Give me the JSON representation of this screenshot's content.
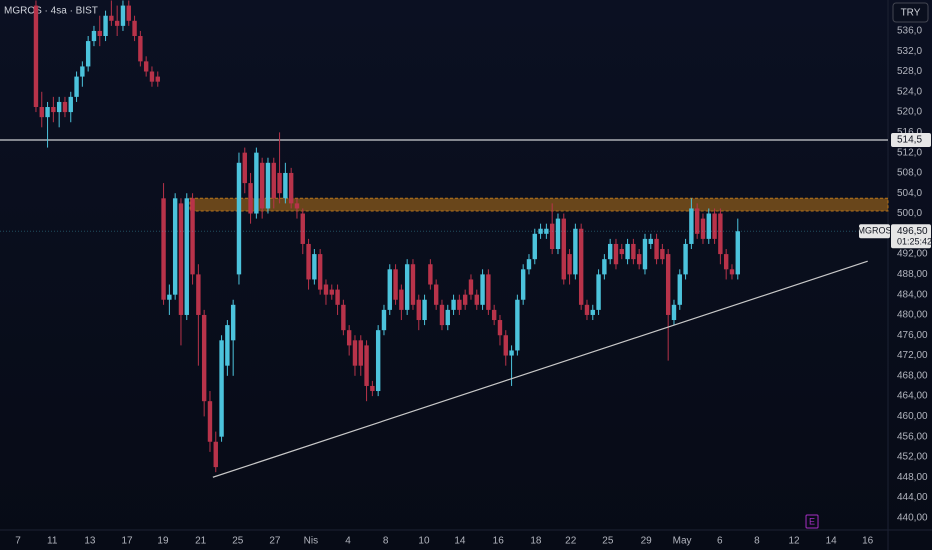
{
  "chart_data": {
    "type": "candlestick",
    "title": "MGROS · 4sa · BIST",
    "currency": "TRY",
    "x": [
      0,
      1,
      2,
      3,
      4,
      5,
      6,
      7,
      8,
      9,
      10,
      11,
      12,
      13,
      14,
      15,
      16,
      17,
      18,
      19,
      20,
      21,
      22,
      23,
      24,
      25,
      26,
      27,
      28,
      29,
      30,
      31,
      32,
      33,
      34,
      35,
      36,
      37,
      38,
      39,
      40,
      41,
      42,
      43,
      44,
      45,
      46,
      47,
      48,
      49,
      50,
      51,
      52,
      53,
      54,
      55,
      56,
      57,
      58,
      59,
      60,
      61,
      62,
      63,
      64,
      65,
      66,
      67,
      68,
      69,
      70,
      71,
      72,
      73,
      74,
      75,
      76,
      77,
      78,
      79,
      80,
      81,
      82,
      83,
      84,
      85,
      86,
      87,
      88,
      89,
      90,
      91,
      92,
      93,
      94,
      95,
      96,
      97,
      98,
      99,
      100,
      101,
      102,
      103,
      104,
      105,
      106,
      107,
      108,
      109,
      110,
      111,
      112,
      113,
      114,
      115,
      116,
      117,
      118,
      119,
      120,
      121
    ],
    "open": [
      541,
      521,
      519,
      521,
      520,
      522,
      520,
      523,
      527,
      529,
      534,
      536,
      535,
      539,
      538,
      537,
      541,
      538,
      535,
      530,
      528,
      527,
      503,
      483,
      484,
      502,
      480,
      503,
      488,
      480,
      463,
      455,
      456,
      470,
      475,
      488,
      512,
      506,
      500,
      510,
      501,
      510,
      508,
      503,
      508,
      502,
      500,
      494,
      487,
      492,
      486,
      485,
      485,
      482,
      477,
      475,
      475,
      474,
      466,
      465,
      477,
      481,
      489,
      485,
      481,
      490,
      483,
      479,
      490,
      486,
      482,
      478,
      481,
      483,
      484,
      487,
      484,
      482,
      488,
      481,
      479,
      476,
      472,
      473,
      483,
      489,
      491,
      496,
      496,
      498,
      493,
      499,
      492,
      488,
      497,
      482,
      480,
      481,
      488,
      491,
      494,
      493,
      491,
      494,
      492,
      489,
      494,
      495,
      493,
      492,
      479,
      482,
      488,
      494,
      501,
      499,
      495,
      500,
      500,
      492,
      489,
      488
    ],
    "high": [
      542,
      524,
      522,
      523,
      523,
      523,
      524,
      528,
      530,
      535,
      537,
      539,
      540,
      542,
      541,
      542,
      542,
      539,
      536,
      531,
      529,
      528,
      506,
      486,
      504,
      503,
      504,
      504,
      490,
      481,
      465,
      457,
      476,
      479,
      483,
      512,
      513,
      508,
      513,
      511,
      511,
      511,
      516,
      510,
      509,
      503,
      501,
      495,
      493,
      493,
      487,
      486,
      486,
      483,
      478,
      476,
      476,
      475,
      467,
      478,
      482,
      490,
      490,
      486,
      491,
      491,
      484,
      484,
      491,
      487,
      483,
      482,
      484,
      484,
      485,
      488,
      485,
      489,
      489,
      482,
      480,
      477,
      474,
      484,
      490,
      492,
      497,
      498,
      498,
      502,
      500,
      500,
      493,
      498,
      498,
      483,
      482,
      489,
      492,
      495,
      495,
      494,
      495,
      495,
      493,
      496,
      496,
      496,
      494,
      493,
      483,
      489,
      495,
      503,
      502,
      500,
      501,
      501,
      501,
      493,
      490,
      499
    ],
    "low": [
      520,
      517,
      513,
      518,
      517,
      519,
      518,
      522,
      525,
      528,
      533,
      533,
      534,
      537,
      535,
      536,
      537,
      534,
      529,
      527,
      525,
      525,
      482,
      480,
      483,
      474,
      479,
      486,
      470,
      460,
      453,
      449,
      455,
      468,
      468,
      486,
      504,
      498,
      499,
      499,
      500,
      501,
      502,
      502,
      501,
      499,
      492,
      485,
      486,
      484,
      482,
      483,
      480,
      476,
      472,
      468,
      468,
      463,
      464,
      464,
      476,
      480,
      482,
      479,
      480,
      481,
      477,
      478,
      485,
      481,
      477,
      477,
      480,
      480,
      481,
      483,
      481,
      481,
      480,
      478,
      474,
      470,
      466,
      472,
      482,
      488,
      490,
      495,
      495,
      492,
      492,
      486,
      486,
      487,
      481,
      479,
      479,
      480,
      487,
      490,
      489,
      491,
      490,
      490,
      489,
      488,
      493,
      490,
      490,
      471,
      478,
      481,
      487,
      493,
      495,
      494,
      494,
      494,
      490,
      487,
      487,
      487
    ],
    "close": [
      521,
      519,
      521,
      520,
      522,
      520,
      523,
      527,
      529,
      534,
      536,
      535,
      539,
      538,
      537,
      541,
      538,
      535,
      530,
      528,
      526,
      526,
      483,
      484,
      503,
      480,
      503,
      488,
      480,
      463,
      455,
      450,
      475,
      478,
      482,
      510,
      506,
      500,
      512,
      501,
      510,
      503,
      504,
      508,
      502,
      501,
      494,
      487,
      492,
      485,
      484,
      484,
      482,
      477,
      474,
      470,
      470,
      466,
      465,
      477,
      481,
      489,
      483,
      481,
      490,
      482,
      479,
      483,
      486,
      482,
      478,
      481,
      483,
      481,
      482,
      484,
      482,
      488,
      481,
      479,
      476,
      472,
      473,
      483,
      489,
      491,
      496,
      497,
      497,
      493,
      499,
      487,
      488,
      497,
      482,
      480,
      481,
      488,
      491,
      494,
      490,
      492,
      494,
      491,
      490,
      495,
      495,
      491,
      491,
      480,
      482,
      488,
      494,
      501,
      496,
      495,
      500,
      495,
      492,
      489,
      488,
      496.5
    ],
    "up_color": "#4cc3dc",
    "down_color": "#b8334a",
    "xlim": [
      -6.2,
      146.9
    ],
    "xticks": [
      {
        "value": -3.1,
        "label": "7"
      },
      {
        "value": 2.8,
        "label": "11"
      },
      {
        "value": 9.3,
        "label": "13"
      },
      {
        "value": 15.7,
        "label": "17"
      },
      {
        "value": 21.9,
        "label": "19"
      },
      {
        "value": 28.4,
        "label": "21"
      },
      {
        "value": 34.8,
        "label": "25"
      },
      {
        "value": 41.2,
        "label": "27"
      },
      {
        "value": 47.4,
        "label": "Nis"
      },
      {
        "value": 53.8,
        "label": "4"
      },
      {
        "value": 60.3,
        "label": "8"
      },
      {
        "value": 66.9,
        "label": "10"
      },
      {
        "value": 73.1,
        "label": "14"
      },
      {
        "value": 79.7,
        "label": "16"
      },
      {
        "value": 86.2,
        "label": "18"
      },
      {
        "value": 92.2,
        "label": "22"
      },
      {
        "value": 98.6,
        "label": "25"
      },
      {
        "value": 105.2,
        "label": "29"
      },
      {
        "value": 111.4,
        "label": "May"
      },
      {
        "value": 117.9,
        "label": "6"
      },
      {
        "value": 124.3,
        "label": "8"
      },
      {
        "value": 130.7,
        "label": "12"
      },
      {
        "value": 137.1,
        "label": "14"
      },
      {
        "value": 143.4,
        "label": "16"
      }
    ],
    "ylim": [
      437.6,
      542.1
    ],
    "yticks": [
      {
        "value": 536,
        "label": "536,0"
      },
      {
        "value": 532,
        "label": "532,0"
      },
      {
        "value": 528,
        "label": "528,0"
      },
      {
        "value": 524,
        "label": "524,0"
      },
      {
        "value": 520,
        "label": "520,0"
      },
      {
        "value": 516,
        "label": "516,0"
      },
      {
        "value": 512,
        "label": "512,0"
      },
      {
        "value": 508,
        "label": "508,0"
      },
      {
        "value": 504,
        "label": "504,0"
      },
      {
        "value": 500,
        "label": "500,0"
      },
      {
        "value": 492,
        "label": "492,00"
      },
      {
        "value": 488,
        "label": "488,00"
      },
      {
        "value": 484,
        "label": "484,00"
      },
      {
        "value": 480,
        "label": "480,00"
      },
      {
        "value": 476,
        "label": "476,00"
      },
      {
        "value": 472,
        "label": "472,00"
      },
      {
        "value": 468,
        "label": "468,00"
      },
      {
        "value": 464,
        "label": "464,00"
      },
      {
        "value": 460,
        "label": "460,00"
      },
      {
        "value": 456,
        "label": "456,00"
      },
      {
        "value": 452,
        "label": "452,00"
      },
      {
        "value": 448,
        "label": "448,00"
      },
      {
        "value": 444,
        "label": "444,00"
      },
      {
        "value": 440,
        "label": "440,00"
      }
    ],
    "grid": false,
    "hline": {
      "value": 514.5,
      "label": "514,5",
      "color": "#ffffff"
    },
    "zone": {
      "range": [
        500.5,
        503
      ],
      "color": "#b8741a"
    },
    "trendline": {
      "x": [
        30.5,
        143.4
      ],
      "y": [
        448,
        490.6
      ],
      "color": "#c8c8c8"
    },
    "last_price": {
      "symbol": "MGROS",
      "value": 496.5,
      "label": "496,50",
      "countdown": "01:25:42"
    },
    "event": {
      "x": 133.8,
      "label": "E",
      "color": "#a62fc4"
    }
  }
}
